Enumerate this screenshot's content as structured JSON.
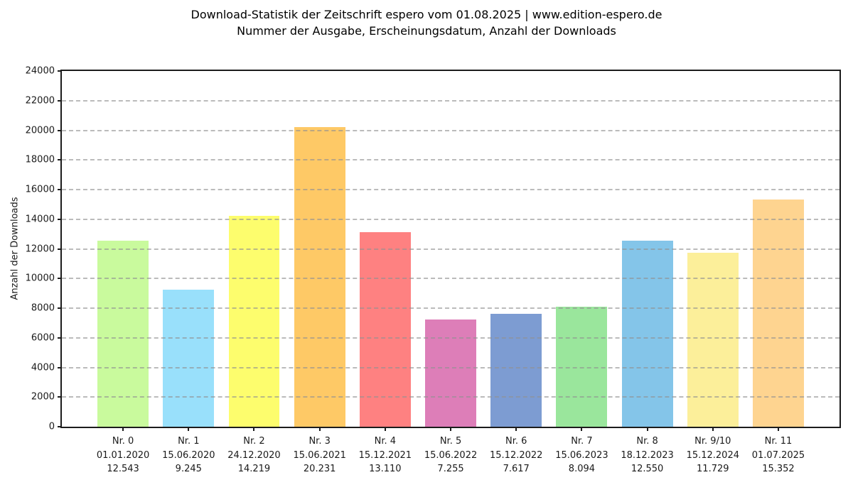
{
  "figure": {
    "title_line1": "Download-Statistik der Zeitschrift espero vom 01.08.2025 | www.edition-espero.de",
    "title_line2": "Nummer der Ausgabe, Erscheinungsdatum, Anzahl der Downloads"
  },
  "chart_data": {
    "type": "bar",
    "title": "Download-Statistik der Zeitschrift espero vom 01.08.2025 | www.edition-espero.de",
    "subtitle": "Nummer der Ausgabe, Erscheinungsdatum, Anzahl der Downloads",
    "xlabel": "",
    "ylabel": "Anzahl der Downloads",
    "ylim": [
      0,
      24000
    ],
    "y_ticks": [
      0,
      2000,
      4000,
      6000,
      8000,
      10000,
      12000,
      14000,
      16000,
      18000,
      20000,
      22000,
      24000
    ],
    "grid": "horizontal-dashed-on-top-of-bars",
    "legend": "none",
    "categories": [
      "Nr. 0",
      "Nr. 1",
      "Nr. 2",
      "Nr. 3",
      "Nr. 4",
      "Nr. 5",
      "Nr. 6",
      "Nr. 7",
      "Nr. 8",
      "Nr. 9/10",
      "Nr. 11"
    ],
    "dates": [
      "01.01.2020",
      "15.06.2020",
      "24.12.2020",
      "15.06.2021",
      "15.12.2021",
      "15.06.2022",
      "15.12.2022",
      "15.06.2023",
      "18.12.2023",
      "15.12.2024",
      "01.07.2025"
    ],
    "values": [
      12543,
      9245,
      14219,
      20231,
      13110,
      7255,
      7617,
      8094,
      12550,
      11729,
      15352
    ],
    "value_labels": [
      "12.543",
      "9.245",
      "14.219",
      "20.231",
      "13.110",
      "7.255",
      "7.617",
      "8.094",
      "12.550",
      "11.729",
      "15.352"
    ],
    "bar_colors": [
      "#c9fa9d",
      "#99e0fb",
      "#fdfd6d",
      "#fec966",
      "#fe8181",
      "#dd7eb8",
      "#7d9cd2",
      "#9ae69c",
      "#84c5e9",
      "#fcef9a",
      "#fed490"
    ]
  },
  "colors": {
    "spine": "#1c1c1c",
    "grid": "#b6b6b6",
    "text": "#1a1a1a",
    "background": "#ffffff"
  }
}
